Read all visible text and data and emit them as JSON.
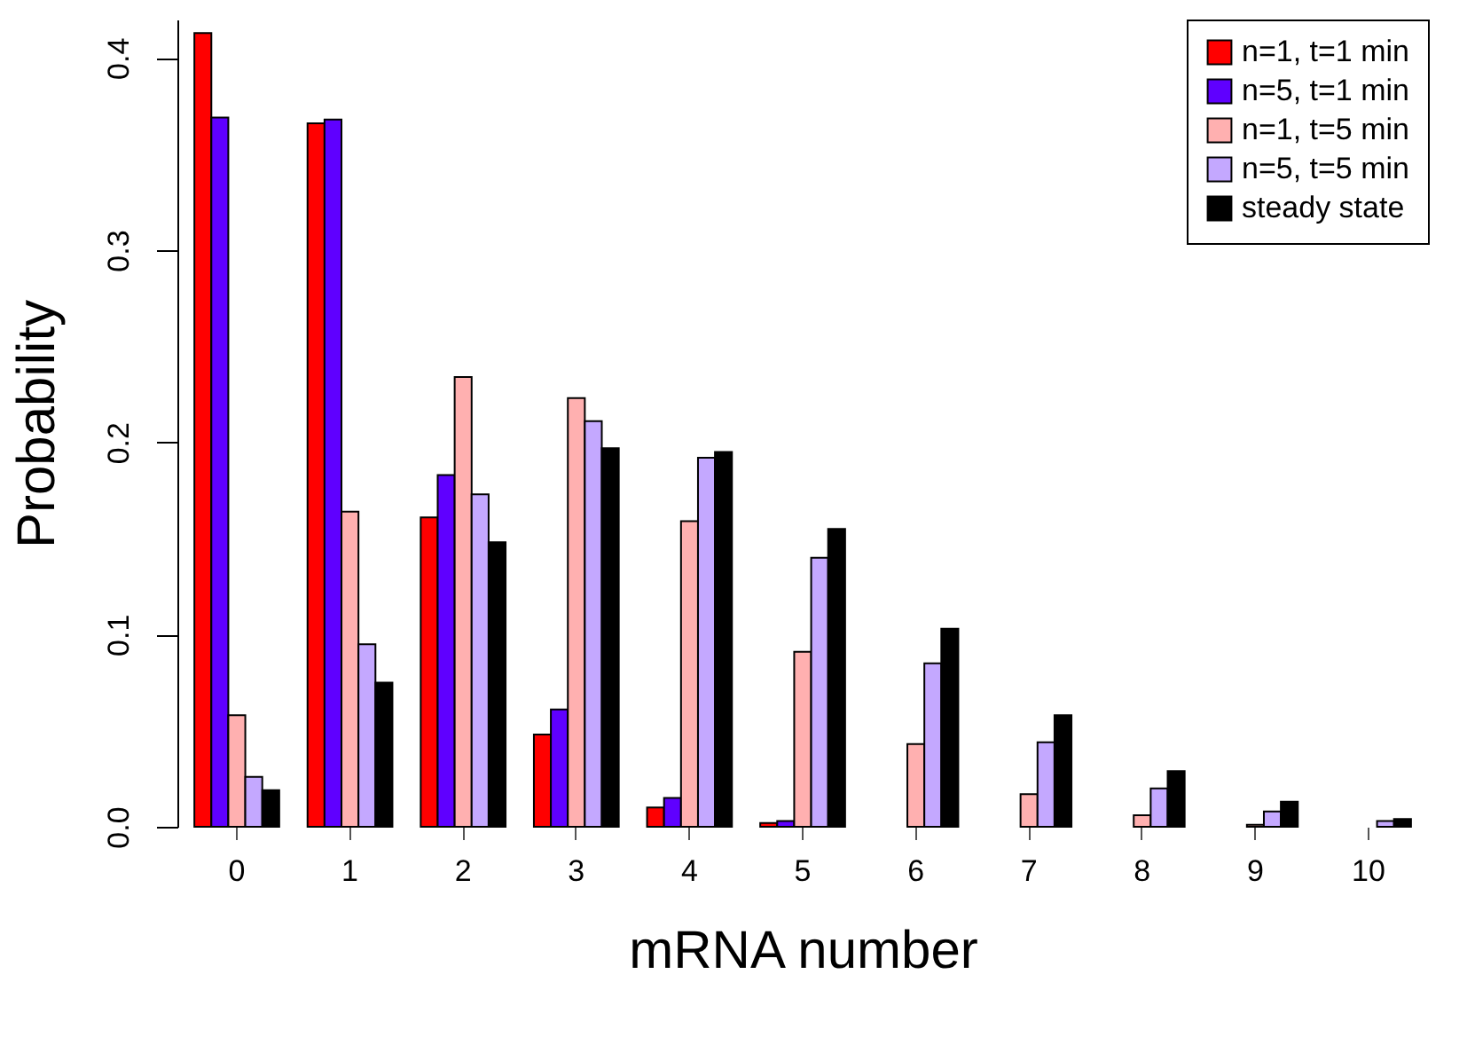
{
  "chart_data": {
    "type": "bar",
    "xlabel": "mRNA number",
    "ylabel": "Probability",
    "categories": [
      "0",
      "1",
      "2",
      "3",
      "4",
      "5",
      "6",
      "7",
      "8",
      "9",
      "10"
    ],
    "series": [
      {
        "name": "n=1, t=1 min",
        "color": "#ff0000",
        "values": [
          0.413,
          0.366,
          0.161,
          0.048,
          0.01,
          0.002,
          0,
          0,
          0,
          0,
          0
        ]
      },
      {
        "name": "n=5, t=1 min",
        "color": "#5f00ff",
        "values": [
          0.369,
          0.368,
          0.183,
          0.061,
          0.015,
          0.003,
          0,
          0,
          0,
          0,
          0
        ]
      },
      {
        "name": "n=1, t=5 min",
        "color": "#ffb0b0",
        "values": [
          0.058,
          0.164,
          0.234,
          0.223,
          0.159,
          0.091,
          0.043,
          0.017,
          0.006,
          0.001,
          0
        ]
      },
      {
        "name": "n=5, t=5 min",
        "color": "#c4a8ff",
        "values": [
          0.026,
          0.095,
          0.173,
          0.211,
          0.192,
          0.14,
          0.085,
          0.044,
          0.02,
          0.008,
          0.003
        ]
      },
      {
        "name": "steady state",
        "color": "#000000",
        "values": [
          0.019,
          0.075,
          0.148,
          0.197,
          0.195,
          0.155,
          0.103,
          0.058,
          0.029,
          0.013,
          0.004
        ]
      }
    ],
    "ylim": [
      0,
      0.42
    ],
    "yticks": [
      {
        "value": 0,
        "label": "0.0"
      },
      {
        "value": 0.1,
        "label": "0.1"
      },
      {
        "value": 0.2,
        "label": "0.2"
      },
      {
        "value": 0.3,
        "label": "0.3"
      },
      {
        "value": 0.4,
        "label": "0.4"
      }
    ],
    "grid": false,
    "legend": "top right"
  }
}
